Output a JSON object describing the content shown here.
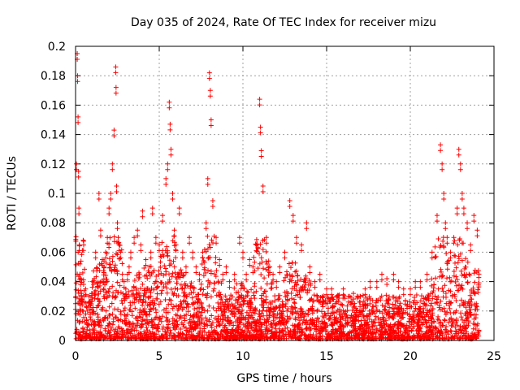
{
  "chart_data": {
    "type": "scatter",
    "title": "Day 035 of 2024, Rate Of TEC Index for receiver mizu",
    "xlabel": "GPS time / hours",
    "ylabel": "ROTI / TECUs",
    "xlim": [
      0,
      25
    ],
    "ylim": [
      0,
      0.2
    ],
    "xticks": [
      0,
      5,
      10,
      15,
      20,
      25
    ],
    "xtick_labels": [
      "0",
      "5",
      "10",
      "15",
      "20",
      "25"
    ],
    "yticks": [
      0,
      0.02,
      0.04,
      0.06,
      0.08,
      0.1,
      0.12,
      0.14,
      0.16,
      0.18,
      0.2
    ],
    "ytick_labels": [
      "0",
      "0.02",
      "0.04",
      "0.06",
      "0.08",
      "0.1",
      "0.12",
      "0.14",
      "0.16",
      "0.18",
      "0.2"
    ],
    "grid": true,
    "marker": "+",
    "color": "#ff0000",
    "series": [
      {
        "name": "ROTI",
        "x": [
          0.0,
          0.05,
          0.1,
          0.12,
          0.15,
          0.18,
          0.2,
          0.22,
          0.25,
          0.3,
          0.35,
          0.4,
          0.5,
          0.6,
          0.8,
          1.0,
          1.2,
          1.4,
          1.5,
          1.6,
          1.7,
          1.8,
          1.9,
          2.0,
          2.1,
          2.2,
          2.3,
          2.4,
          2.42,
          2.45,
          2.5,
          2.55,
          2.6,
          2.7,
          2.8,
          2.9,
          3.0,
          3.1,
          3.2,
          3.3,
          3.5,
          3.7,
          3.9,
          4.0,
          4.2,
          4.4,
          4.5,
          4.6,
          4.8,
          5.0,
          5.2,
          5.4,
          5.5,
          5.6,
          5.65,
          5.7,
          5.8,
          5.9,
          6.0,
          6.2,
          6.4,
          6.6,
          6.8,
          7.0,
          7.2,
          7.4,
          7.6,
          7.8,
          7.9,
          8.0,
          8.05,
          8.1,
          8.2,
          8.4,
          8.6,
          8.8,
          9.0,
          9.2,
          9.5,
          9.8,
          10.0,
          10.2,
          10.4,
          10.6,
          10.8,
          11.0,
          11.05,
          11.1,
          11.2,
          11.4,
          11.6,
          11.8,
          12.0,
          12.2,
          12.5,
          12.8,
          13.0,
          13.2,
          13.5,
          13.8,
          14.0,
          14.3,
          14.6,
          15.0,
          15.3,
          15.6,
          16.0,
          16.3,
          16.6,
          17.0,
          17.3,
          17.6,
          18.0,
          18.3,
          18.6,
          19.0,
          19.3,
          19.6,
          20.0,
          20.3,
          20.6,
          21.0,
          21.3,
          21.6,
          21.8,
          21.9,
          22.0,
          22.1,
          22.2,
          22.4,
          22.6,
          22.8,
          22.9,
          23.0,
          23.1,
          23.2,
          23.4,
          23.6,
          23.8,
          24.0
        ],
        "y": [
          0.025,
          0.12,
          0.195,
          0.18,
          0.152,
          0.115,
          0.09,
          0.065,
          0.045,
          0.038,
          0.032,
          0.028,
          0.03,
          0.035,
          0.03,
          0.04,
          0.06,
          0.1,
          0.075,
          0.055,
          0.05,
          0.06,
          0.07,
          0.09,
          0.1,
          0.12,
          0.143,
          0.186,
          0.172,
          0.105,
          0.08,
          0.07,
          0.065,
          0.06,
          0.045,
          0.04,
          0.035,
          0.045,
          0.05,
          0.06,
          0.07,
          0.075,
          0.065,
          0.088,
          0.055,
          0.05,
          0.06,
          0.09,
          0.07,
          0.065,
          0.085,
          0.11,
          0.12,
          0.162,
          0.147,
          0.13,
          0.1,
          0.075,
          0.065,
          0.09,
          0.06,
          0.05,
          0.07,
          0.06,
          0.05,
          0.045,
          0.06,
          0.08,
          0.11,
          0.182,
          0.17,
          0.15,
          0.095,
          0.07,
          0.055,
          0.045,
          0.05,
          0.04,
          0.045,
          0.07,
          0.06,
          0.045,
          0.055,
          0.05,
          0.065,
          0.164,
          0.145,
          0.129,
          0.105,
          0.07,
          0.05,
          0.045,
          0.04,
          0.05,
          0.06,
          0.095,
          0.085,
          0.07,
          0.065,
          0.08,
          0.05,
          0.04,
          0.045,
          0.035,
          0.035,
          0.03,
          0.035,
          0.03,
          0.032,
          0.03,
          0.035,
          0.04,
          0.04,
          0.045,
          0.042,
          0.045,
          0.04,
          0.035,
          0.035,
          0.04,
          0.04,
          0.045,
          0.06,
          0.085,
          0.133,
          0.12,
          0.1,
          0.08,
          0.07,
          0.06,
          0.07,
          0.09,
          0.13,
          0.12,
          0.1,
          0.09,
          0.08,
          0.065,
          0.085,
          0.075
        ]
      }
    ]
  }
}
